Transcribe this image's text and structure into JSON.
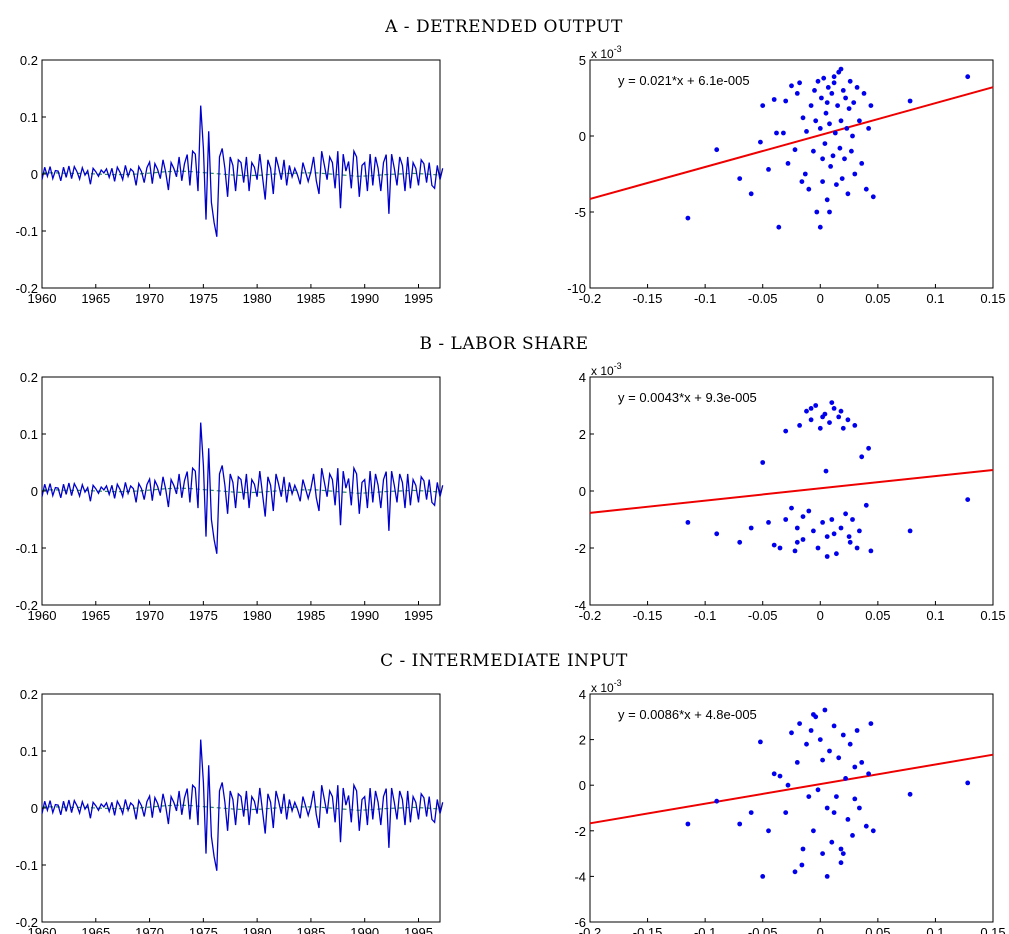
{
  "panels": [
    {
      "title": "A - DETRENDED OUTPUT",
      "equation": "y = 0.021*x + 6.1e-005",
      "scatter_exponent_base": "x 10",
      "scatter_exponent_power": "-3"
    },
    {
      "title": "B - LABOR SHARE",
      "equation": "y = 0.0043*x + 9.3e-005",
      "scatter_exponent_base": "x 10",
      "scatter_exponent_power": "-3"
    },
    {
      "title": "C - INTERMEDIATE INPUT",
      "equation": "y = 0.0086*x + 4.8e-005",
      "scatter_exponent_base": "x 10",
      "scatter_exponent_power": "-3"
    }
  ],
  "colors": {
    "series": "#0000cc",
    "trend": "#2e8b57",
    "scatter": "#0000ee",
    "fit": "#ee0000"
  },
  "chart_data": [
    {
      "type": "line",
      "panel": "A",
      "xlim": [
        1960,
        1997
      ],
      "ylim": [
        -0.2,
        0.2
      ],
      "xticks": [
        "1960",
        "1965",
        "1970",
        "1975",
        "1980",
        "1985",
        "1990",
        "1995"
      ],
      "yticks": [
        "0.2",
        "0.1",
        "0",
        "-0.1",
        "-0.2"
      ],
      "x_start": 1960,
      "x_step": 0.25,
      "series": [
        {
          "values": [
            -0.01,
            0.012,
            -0.004,
            0.013,
            -0.008,
            0.006,
            0.005,
            -0.012,
            0.012,
            -0.006,
            0.014,
            -0.008,
            0.013,
            0.004,
            -0.009,
            0.011,
            -0.002,
            0.006,
            -0.018,
            0.01,
            0.004,
            -0.004,
            0.007,
            0.002,
            0.009,
            -0.006,
            0.01,
            -0.013,
            0.012,
            0.003,
            -0.01,
            0.015,
            -0.004,
            0.009,
            0.004,
            -0.02,
            0.013,
            0.004,
            -0.015,
            0.011,
            0.021,
            -0.017,
            0.018,
            0.008,
            -0.008,
            0.025,
            0.003,
            -0.028,
            0.02,
            0.01,
            -0.005,
            0.03,
            -0.012,
            0.018,
            0.034,
            -0.02,
            0.04,
            0.035,
            -0.03,
            0.12,
            0.045,
            -0.08,
            0.075,
            -0.05,
            -0.085,
            -0.11,
            0.03,
            0.045,
            0.01,
            -0.04,
            0.03,
            0.015,
            -0.03,
            0.025,
            0.02,
            -0.015,
            0.03,
            -0.03,
            0.02,
            0.012,
            -0.01,
            0.035,
            -0.005,
            -0.045,
            0.025,
            0.01,
            -0.035,
            0.03,
            0.012,
            -0.01,
            0.025,
            -0.02,
            0.015,
            -0.005,
            0.01,
            -0.002,
            -0.018,
            0.02,
            0.004,
            -0.013,
            0.004,
            0.03,
            -0.012,
            -0.035,
            0.04,
            0.015,
            -0.01,
            0.03,
            0.02,
            -0.025,
            0.04,
            -0.06,
            0.035,
            0.005,
            0.022,
            -0.025,
            0.04,
            0.03,
            -0.04,
            0.015,
            0.02,
            -0.03,
            0.035,
            -0.02,
            0.03,
            0.01,
            -0.03,
            0.02,
            0.034,
            -0.07,
            0.035,
            0.01,
            -0.02,
            0.03,
            0.015,
            -0.03,
            0.03,
            -0.025,
            0.02,
            0.01,
            -0.02,
            0.025,
            0.018,
            -0.015,
            0.02,
            -0.02,
            -0.025,
            0.015,
            -0.01,
            0.01
          ]
        },
        {
          "values": [
            0.002,
            0.002,
            0.001,
            0.001,
            0.0,
            -0.001,
            -0.001,
            0.0,
            0.002,
            0.004,
            0.005,
            0.004,
            0.002,
            0.0,
            -0.002,
            -0.003,
            -0.002,
            0.0,
            0.001,
            0.002,
            0.002,
            0.0,
            -0.002,
            -0.004,
            -0.003,
            -0.001,
            0.0,
            0.001,
            0.0,
            -0.002
          ]
        }
      ]
    },
    {
      "type": "scatter",
      "panel": "A",
      "xlim": [
        -0.2,
        0.15
      ],
      "ylim": [
        -10,
        5
      ],
      "y_scale_note": "x 10^-3",
      "xticks": [
        "-0.2",
        "-0.15",
        "-0.1",
        "-0.05",
        "0",
        "0.05",
        "0.1",
        "0.15"
      ],
      "yticks": [
        "5",
        "0",
        "-5",
        "-10"
      ],
      "fit": {
        "slope": 21,
        "intercept": 0.061
      },
      "points": [
        [
          -0.115,
          -5.4
        ],
        [
          -0.09,
          -0.9
        ],
        [
          -0.07,
          -2.8
        ],
        [
          -0.06,
          -3.8
        ],
        [
          -0.052,
          -0.4
        ],
        [
          -0.05,
          2.0
        ],
        [
          -0.045,
          -2.2
        ],
        [
          -0.04,
          2.4
        ],
        [
          -0.038,
          0.2
        ],
        [
          -0.036,
          -6.0
        ],
        [
          -0.032,
          0.2
        ],
        [
          -0.03,
          2.3
        ],
        [
          -0.025,
          3.3
        ],
        [
          -0.022,
          -0.9
        ],
        [
          -0.02,
          2.8
        ],
        [
          -0.018,
          3.5
        ],
        [
          -0.015,
          1.2
        ],
        [
          -0.013,
          -2.5
        ],
        [
          -0.012,
          0.3
        ],
        [
          -0.01,
          -3.5
        ],
        [
          -0.008,
          2.0
        ],
        [
          -0.006,
          -1.0
        ],
        [
          -0.005,
          3.0
        ],
        [
          -0.003,
          -5.0
        ],
        [
          0.0,
          0.5
        ],
        [
          0.001,
          2.5
        ],
        [
          0.002,
          -3.0
        ],
        [
          0.003,
          3.8
        ],
        [
          0.004,
          -0.5
        ],
        [
          0.005,
          1.5
        ],
        [
          0.006,
          -4.2
        ],
        [
          0.007,
          3.2
        ],
        [
          0.008,
          0.8
        ],
        [
          0.009,
          -2.0
        ],
        [
          0.01,
          2.8
        ],
        [
          0.011,
          -1.3
        ],
        [
          0.012,
          3.5
        ],
        [
          0.013,
          0.2
        ],
        [
          0.014,
          -3.2
        ],
        [
          0.015,
          2.0
        ],
        [
          0.016,
          4.2
        ],
        [
          0.017,
          -0.8
        ],
        [
          0.018,
          1.0
        ],
        [
          0.019,
          -2.8
        ],
        [
          0.02,
          3.0
        ],
        [
          0.021,
          -1.5
        ],
        [
          0.022,
          2.5
        ],
        [
          0.023,
          0.5
        ],
        [
          0.024,
          -3.8
        ],
        [
          0.025,
          1.8
        ],
        [
          0.026,
          3.6
        ],
        [
          0.027,
          -1.0
        ],
        [
          0.028,
          0.0
        ],
        [
          0.029,
          2.2
        ],
        [
          0.03,
          -2.5
        ],
        [
          0.032,
          3.2
        ],
        [
          0.034,
          1.0
        ],
        [
          0.036,
          -1.8
        ],
        [
          0.038,
          2.8
        ],
        [
          0.04,
          -3.5
        ],
        [
          0.042,
          0.5
        ],
        [
          0.044,
          2.0
        ],
        [
          0.046,
          -4.0
        ],
        [
          0.078,
          2.3
        ],
        [
          0.128,
          3.9
        ],
        [
          -0.028,
          -1.8
        ],
        [
          -0.016,
          -3.0
        ],
        [
          -0.004,
          1.0
        ],
        [
          0.0,
          -6.0
        ],
        [
          0.008,
          -5.0
        ],
        [
          0.012,
          3.9
        ],
        [
          0.018,
          4.4
        ],
        [
          0.002,
          -1.5
        ],
        [
          -0.002,
          3.6
        ],
        [
          0.006,
          2.2
        ]
      ]
    },
    {
      "type": "line",
      "panel": "B",
      "xlim": [
        1960,
        1997
      ],
      "ylim": [
        -0.2,
        0.2
      ],
      "xticks": [
        "1960",
        "1965",
        "1970",
        "1975",
        "1980",
        "1985",
        "1990",
        "1995"
      ],
      "yticks": [
        "0.2",
        "0.1",
        "0",
        "-0.1",
        "-0.2"
      ],
      "x_start": 1960,
      "x_step": 0.25,
      "series_from_panel": "A"
    },
    {
      "type": "scatter",
      "panel": "B",
      "xlim": [
        -0.2,
        0.15
      ],
      "ylim": [
        -4,
        4
      ],
      "y_scale_note": "x 10^-3",
      "xticks": [
        "-0.2",
        "-0.15",
        "-0.1",
        "-0.05",
        "0",
        "0.05",
        "0.1",
        "0.15"
      ],
      "yticks": [
        "4",
        "2",
        "0",
        "-2",
        "-4"
      ],
      "fit": {
        "slope": 4.3,
        "intercept": 0.093
      },
      "points": [
        [
          -0.115,
          -1.1
        ],
        [
          -0.09,
          -1.5
        ],
        [
          -0.07,
          -1.8
        ],
        [
          -0.06,
          -1.3
        ],
        [
          -0.05,
          1.0
        ],
        [
          -0.045,
          -1.1
        ],
        [
          -0.04,
          -1.9
        ],
        [
          -0.035,
          -2.0
        ],
        [
          -0.03,
          -1.0
        ],
        [
          -0.025,
          -0.6
        ],
        [
          -0.022,
          -2.1
        ],
        [
          -0.02,
          -1.3
        ],
        [
          -0.018,
          2.3
        ],
        [
          -0.015,
          -1.7
        ],
        [
          -0.012,
          2.8
        ],
        [
          -0.01,
          -0.7
        ],
        [
          -0.008,
          2.5
        ],
        [
          -0.006,
          -1.4
        ],
        [
          -0.004,
          3.0
        ],
        [
          -0.002,
          -2.0
        ],
        [
          0.0,
          2.2
        ],
        [
          0.002,
          -1.1
        ],
        [
          0.004,
          2.7
        ],
        [
          0.006,
          -1.6
        ],
        [
          0.008,
          2.4
        ],
        [
          0.01,
          -1.0
        ],
        [
          0.012,
          2.9
        ],
        [
          0.014,
          -2.2
        ],
        [
          0.016,
          2.6
        ],
        [
          0.018,
          -1.3
        ],
        [
          0.02,
          2.2
        ],
        [
          0.022,
          -0.8
        ],
        [
          0.024,
          2.5
        ],
        [
          0.026,
          -1.8
        ],
        [
          0.028,
          -1.0
        ],
        [
          0.03,
          2.3
        ],
        [
          0.032,
          -2.0
        ],
        [
          0.034,
          -1.4
        ],
        [
          0.036,
          1.2
        ],
        [
          0.04,
          -0.5
        ],
        [
          0.042,
          1.5
        ],
        [
          0.044,
          -2.1
        ],
        [
          0.078,
          -1.4
        ],
        [
          0.128,
          -0.3
        ],
        [
          0.005,
          0.7
        ],
        [
          -0.03,
          2.1
        ],
        [
          0.01,
          3.1
        ],
        [
          -0.008,
          2.9
        ],
        [
          0.018,
          2.8
        ],
        [
          0.006,
          -2.3
        ],
        [
          0.012,
          -1.5
        ],
        [
          -0.015,
          -0.9
        ],
        [
          0.025,
          -1.6
        ],
        [
          0.002,
          2.6
        ],
        [
          -0.02,
          -1.8
        ]
      ]
    },
    {
      "type": "line",
      "panel": "C",
      "xlim": [
        1960,
        1997
      ],
      "ylim": [
        -0.2,
        0.2
      ],
      "xticks": [
        "1960",
        "1965",
        "1970",
        "1975",
        "1980",
        "1985",
        "1990",
        "1995"
      ],
      "yticks": [
        "0.2",
        "0.1",
        "0",
        "-0.1",
        "-0.2"
      ],
      "x_start": 1960,
      "x_step": 0.25,
      "series_from_panel": "A"
    },
    {
      "type": "scatter",
      "panel": "C",
      "xlim": [
        -0.2,
        0.15
      ],
      "ylim": [
        -6,
        4
      ],
      "y_scale_note": "x 10^-3",
      "xticks": [
        "-0.2",
        "-0.15",
        "-0.1",
        "-0.05",
        "0",
        "0.05",
        "0.1",
        "0.15"
      ],
      "yticks": [
        "4",
        "2",
        "0",
        "-2",
        "-4",
        "-6"
      ],
      "fit": {
        "slope": 8.6,
        "intercept": 0.048
      },
      "points": [
        [
          -0.115,
          -1.7
        ],
        [
          -0.09,
          -0.7
        ],
        [
          -0.07,
          -1.7
        ],
        [
          -0.06,
          -1.2
        ],
        [
          -0.052,
          1.9
        ],
        [
          -0.05,
          -4.0
        ],
        [
          -0.045,
          -2.0
        ],
        [
          -0.04,
          0.5
        ],
        [
          -0.035,
          0.4
        ],
        [
          -0.03,
          -1.2
        ],
        [
          -0.025,
          2.3
        ],
        [
          -0.022,
          -3.8
        ],
        [
          -0.02,
          1.0
        ],
        [
          -0.018,
          2.7
        ],
        [
          -0.015,
          -2.8
        ],
        [
          -0.012,
          1.8
        ],
        [
          -0.01,
          -0.5
        ],
        [
          -0.008,
          2.4
        ],
        [
          -0.006,
          -2.0
        ],
        [
          -0.004,
          3.0
        ],
        [
          -0.002,
          -0.2
        ],
        [
          0.0,
          2.0
        ],
        [
          0.002,
          -3.0
        ],
        [
          0.004,
          3.3
        ],
        [
          0.006,
          -1.0
        ],
        [
          0.008,
          1.5
        ],
        [
          0.01,
          -2.5
        ],
        [
          0.012,
          2.6
        ],
        [
          0.014,
          -0.5
        ],
        [
          0.016,
          1.2
        ],
        [
          0.018,
          -3.4
        ],
        [
          0.02,
          2.2
        ],
        [
          0.022,
          0.3
        ],
        [
          0.024,
          -1.5
        ],
        [
          0.026,
          1.8
        ],
        [
          0.028,
          -2.2
        ],
        [
          0.03,
          0.8
        ],
        [
          0.032,
          2.4
        ],
        [
          0.034,
          -1.0
        ],
        [
          0.036,
          1.0
        ],
        [
          0.04,
          -1.8
        ],
        [
          0.042,
          0.5
        ],
        [
          0.044,
          2.7
        ],
        [
          0.046,
          -2.0
        ],
        [
          0.078,
          -0.4
        ],
        [
          0.128,
          0.1
        ],
        [
          0.006,
          -4.0
        ],
        [
          -0.016,
          -3.5
        ],
        [
          0.018,
          -2.8
        ],
        [
          -0.006,
          3.1
        ],
        [
          0.012,
          -1.2
        ],
        [
          0.02,
          -3.0
        ],
        [
          -0.028,
          0.0
        ],
        [
          0.002,
          1.1
        ],
        [
          0.03,
          -0.6
        ]
      ]
    }
  ]
}
